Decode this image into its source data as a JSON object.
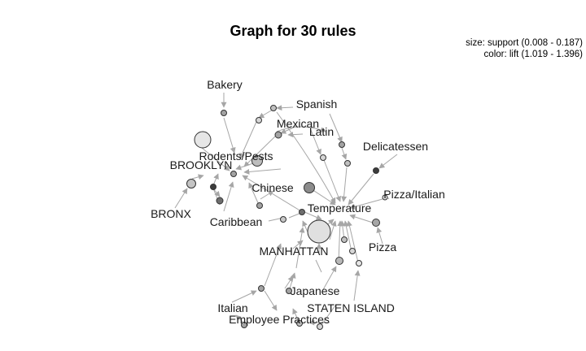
{
  "title": "Graph for 30 rules",
  "legend": {
    "size": "size: support (0.008 - 0.187)",
    "color": "color: lift (1.019 - 1.396)"
  },
  "labels": {
    "bakery": "Bakery",
    "spanish": "Spanish",
    "mexican": "Mexican",
    "latin": "Latin",
    "delicatessen": "Delicatessen",
    "rodents_pests": "Rodents/Pests",
    "brooklyn": "BROOKLYN",
    "chinese": "Chinese",
    "pizza_italian": "Pizza/Italian",
    "bronx": "BRONX",
    "temperature": "Temperature",
    "caribbean": "Caribbean",
    "manhattan": "MANHATTAN",
    "pizza": "Pizza",
    "japanese": "Japanese",
    "italian": "Italian",
    "staten_island": "STATEN ISLAND",
    "employee_practices": "Employee Practices"
  },
  "colors": {
    "edge": "#a6a6a6",
    "node_stroke": "#333333",
    "item_fill": "#bdbdbd",
    "rule_light": "#d6d6d6",
    "rule_mid": "#a3a3a3",
    "rule_dark": "#6e6e6e",
    "rule_darkest": "#3c3c3c"
  }
}
